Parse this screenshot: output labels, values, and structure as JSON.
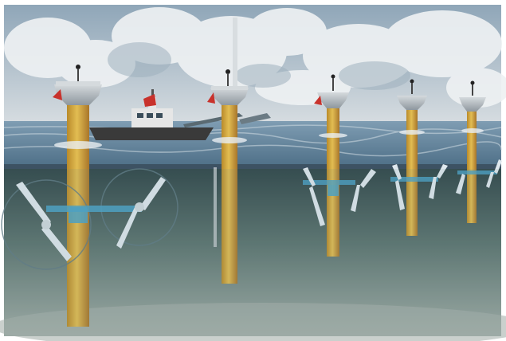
{
  "scene": {
    "subject": "tidal-stream-turbine-array",
    "colors": {
      "frame": "#ffffff",
      "sky_top": "#8fa6b8",
      "sky_bottom": "#c9d3da",
      "cloud": "#eef1f3",
      "sea_surface": "#5d7f98",
      "sea_surface_far": "#7f9db3",
      "waterline": "#3d5263",
      "underwater_top": "#3f5a5f",
      "underwater_bottom": "#8e9e9a",
      "seabed": "#a7b1ab",
      "pile_yellow": "#d4a83a",
      "pile_orange": "#c77b2a",
      "pile_band": "#4aa3c9",
      "platform": "#c9ced2",
      "platform_shadow": "#8e979e",
      "warning_red": "#c8322c",
      "blade": "#dfe8ee",
      "ring": "#5f7a86",
      "ship_hull": "#3a3a3a",
      "ship_top": "#e6e6e6"
    },
    "objects": [
      "pile",
      "platform",
      "warning-light",
      "rotor-blade",
      "vessel",
      "crane-arm",
      "cloud"
    ]
  }
}
